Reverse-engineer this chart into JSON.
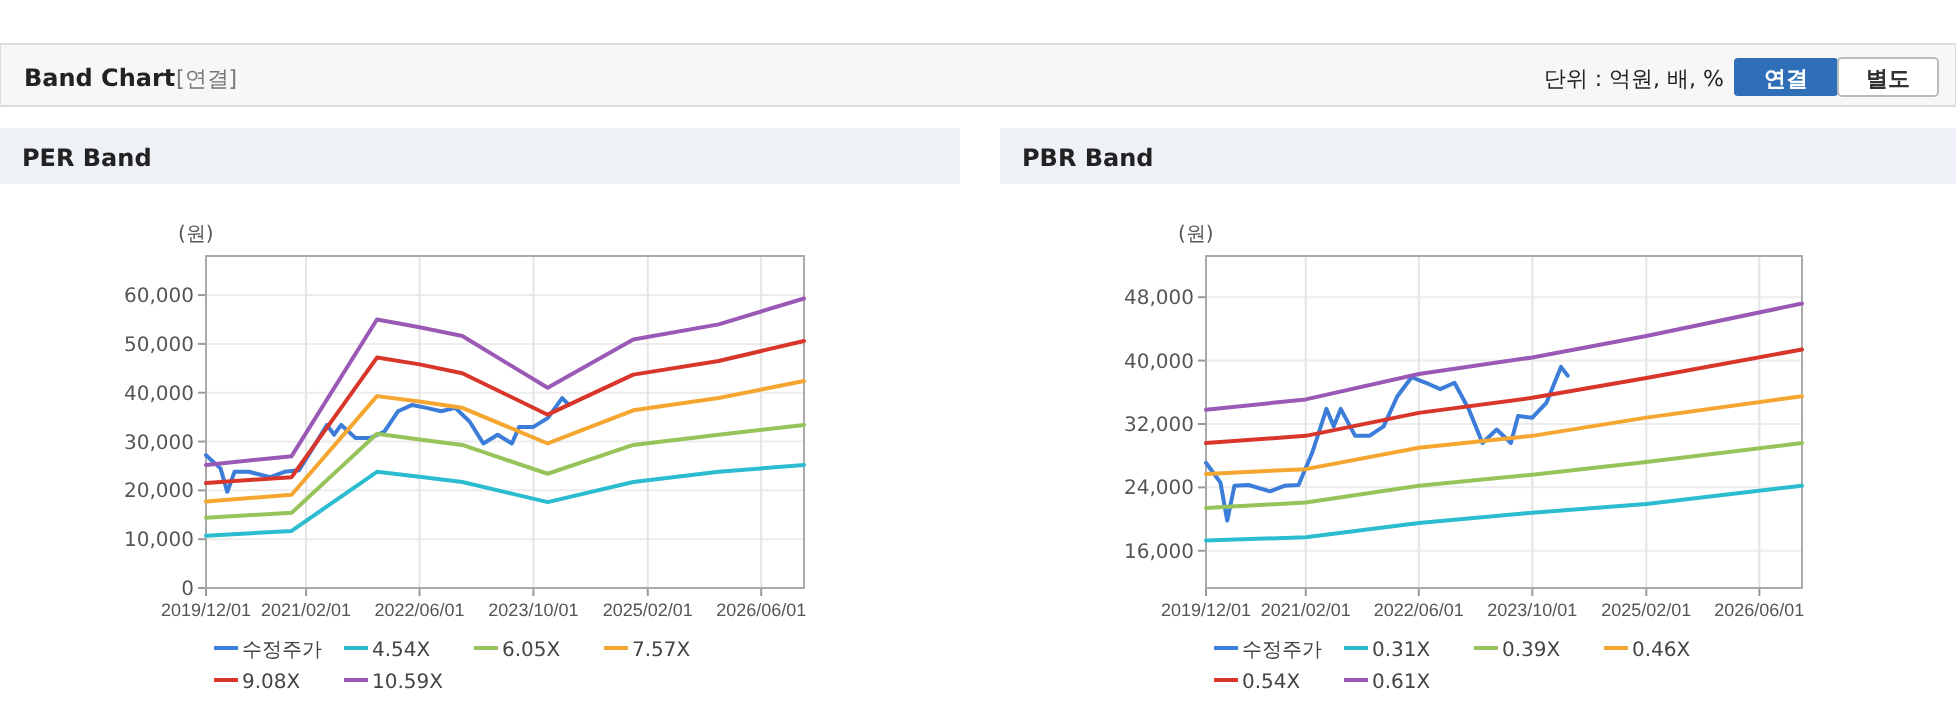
{
  "chart_data": [
    {
      "type": "line",
      "title": "PER Band",
      "ylabel": "(원)",
      "grid": true,
      "legend": "bottom",
      "annotations": [
        "Band Chart",
        "[연결]",
        "단위 : 억원, 배, %",
        "연결",
        "별도"
      ],
      "xlim": [
        "2019-12-01",
        "2026-12-01"
      ],
      "xticks": [
        {
          "value": "2019-12-01",
          "label": "2019/12/01"
        },
        {
          "value": "2021-02-01",
          "label": "2021/02/01"
        },
        {
          "value": "2022-06-01",
          "label": "2022/06/01"
        },
        {
          "value": "2023-10-01",
          "label": "2023/10/01"
        },
        {
          "value": "2025-02-01",
          "label": "2025/02/01"
        },
        {
          "value": "2026-06-01",
          "label": "2026/06/01"
        }
      ],
      "ylim": [
        0,
        68000
      ],
      "yticks": [
        {
          "value": 0,
          "label": "0"
        },
        {
          "value": 10000,
          "label": "10,000"
        },
        {
          "value": 20000,
          "label": "20,000"
        },
        {
          "value": 30000,
          "label": "30,000"
        },
        {
          "value": 40000,
          "label": "40,000"
        },
        {
          "value": 50000,
          "label": "50,000"
        },
        {
          "value": 60000,
          "label": "60,000"
        }
      ],
      "series": [
        {
          "name": "수정주가",
          "color": "#3b7dd8",
          "x": [
            "2019-12",
            "2020-02",
            "2020-03",
            "2020-04",
            "2020-06",
            "2020-09",
            "2020-11",
            "2021-01",
            "2021-03",
            "2021-05",
            "2021-06",
            "2021-07",
            "2021-09",
            "2021-11",
            "2022-01",
            "2022-03",
            "2022-05",
            "2022-07",
            "2022-09",
            "2022-11",
            "2023-01",
            "2023-03",
            "2023-05",
            "2023-07",
            "2023-08",
            "2023-10",
            "2023-12",
            "2024-02",
            "2024-03"
          ],
          "values": [
            27200,
            24500,
            19700,
            23800,
            23800,
            22700,
            23800,
            24100,
            28600,
            33400,
            31400,
            33400,
            30700,
            30700,
            32000,
            36200,
            37500,
            36900,
            36200,
            36900,
            34100,
            29600,
            31400,
            29600,
            33000,
            33000,
            34800,
            38900,
            37500
          ]
        },
        {
          "name": "4.54X",
          "color": "#2bbcd0",
          "x": [
            "2019-12",
            "2020-12",
            "2021-12",
            "2022-06",
            "2022-12",
            "2023-12",
            "2024-12",
            "2025-12",
            "2026-12"
          ],
          "values": [
            10700,
            11700,
            23800,
            22800,
            21700,
            17600,
            21700,
            23800,
            25200
          ]
        },
        {
          "name": "6.05X",
          "color": "#96c35a",
          "x": [
            "2019-12",
            "2020-12",
            "2021-12",
            "2022-06",
            "2022-12",
            "2023-12",
            "2024-12",
            "2025-12",
            "2026-12"
          ],
          "values": [
            14400,
            15400,
            31600,
            30400,
            29300,
            23400,
            29300,
            31400,
            33400
          ]
        },
        {
          "name": "7.57X",
          "color": "#f5a630",
          "x": [
            "2019-12",
            "2020-12",
            "2021-12",
            "2022-06",
            "2022-12",
            "2023-12",
            "2024-12",
            "2025-12",
            "2026-12"
          ],
          "values": [
            17700,
            19100,
            39300,
            38200,
            36900,
            29600,
            36400,
            38900,
            42400
          ]
        },
        {
          "name": "9.08X",
          "color": "#d9362b",
          "x": [
            "2019-12",
            "2020-12",
            "2021-12",
            "2022-06",
            "2022-12",
            "2023-12",
            "2024-12",
            "2025-12",
            "2026-12"
          ],
          "values": [
            21500,
            22700,
            47200,
            45800,
            44000,
            35500,
            43700,
            46500,
            50600
          ]
        },
        {
          "name": "10.59X",
          "color": "#9b59b6",
          "x": [
            "2019-12",
            "2020-12",
            "2021-12",
            "2022-06",
            "2022-12",
            "2023-12",
            "2024-12",
            "2025-12",
            "2026-12"
          ],
          "values": [
            25200,
            27000,
            55000,
            53400,
            51600,
            41000,
            50900,
            54000,
            59300
          ]
        }
      ]
    },
    {
      "type": "line",
      "title": "PBR Band",
      "ylabel": "(원)",
      "grid": true,
      "legend": "bottom",
      "xlim": [
        "2019-12-01",
        "2026-12-01"
      ],
      "xticks": [
        {
          "value": "2019-12-01",
          "label": "2019/12/01"
        },
        {
          "value": "2021-02-01",
          "label": "2021/02/01"
        },
        {
          "value": "2022-06-01",
          "label": "2022/06/01"
        },
        {
          "value": "2023-10-01",
          "label": "2023/10/01"
        },
        {
          "value": "2025-02-01",
          "label": "2025/02/01"
        },
        {
          "value": "2026-06-01",
          "label": "2026/06/01"
        }
      ],
      "ylim": [
        11300,
        53200
      ],
      "yticks": [
        {
          "value": 16000,
          "label": "16,000"
        },
        {
          "value": 24000,
          "label": "24,000"
        },
        {
          "value": 32000,
          "label": "32,000"
        },
        {
          "value": 40000,
          "label": "40,000"
        },
        {
          "value": 48000,
          "label": "48,000"
        }
      ],
      "series": [
        {
          "name": "수정주가",
          "color": "#3b7dd8",
          "x": [
            "2019-12",
            "2020-02",
            "2020-03",
            "2020-04",
            "2020-06",
            "2020-09",
            "2020-11",
            "2021-01",
            "2021-03",
            "2021-05",
            "2021-06",
            "2021-07",
            "2021-09",
            "2021-11",
            "2022-01",
            "2022-03",
            "2022-05",
            "2022-07",
            "2022-09",
            "2022-11",
            "2023-01",
            "2023-03",
            "2023-05",
            "2023-07",
            "2023-08",
            "2023-10",
            "2023-12",
            "2024-02",
            "2024-03"
          ],
          "values": [
            27100,
            24600,
            19800,
            24200,
            24300,
            23500,
            24200,
            24300,
            28400,
            33900,
            31700,
            33900,
            30500,
            30500,
            31700,
            35500,
            37900,
            37200,
            36400,
            37200,
            33900,
            29600,
            31300,
            29600,
            33000,
            32800,
            34700,
            39200,
            38100
          ]
        },
        {
          "name": "0.31X",
          "color": "#2bbcd0",
          "x": [
            "2019-12",
            "2021-02",
            "2022-06",
            "2023-10",
            "2025-02",
            "2026-12"
          ],
          "values": [
            17300,
            17700,
            19500,
            20800,
            21900,
            24200
          ]
        },
        {
          "name": "0.39X",
          "color": "#96c35a",
          "x": [
            "2019-12",
            "2021-02",
            "2022-06",
            "2023-10",
            "2025-02",
            "2026-12"
          ],
          "values": [
            21400,
            22100,
            24200,
            25600,
            27200,
            29600
          ]
        },
        {
          "name": "0.46X",
          "color": "#f5a630",
          "x": [
            "2019-12",
            "2021-02",
            "2022-06",
            "2023-10",
            "2025-02",
            "2026-12"
          ],
          "values": [
            25700,
            26300,
            29000,
            30500,
            32800,
            35500
          ]
        },
        {
          "name": "0.54X",
          "color": "#d9362b",
          "x": [
            "2019-12",
            "2021-02",
            "2022-06",
            "2023-10",
            "2025-02",
            "2026-12"
          ],
          "values": [
            29600,
            30500,
            33400,
            35300,
            37800,
            41400
          ]
        },
        {
          "name": "0.61X",
          "color": "#9b59b6",
          "x": [
            "2019-12",
            "2021-02",
            "2022-06",
            "2023-10",
            "2025-02",
            "2026-12"
          ],
          "values": [
            33800,
            35100,
            38300,
            40400,
            43100,
            47200
          ]
        }
      ]
    }
  ]
}
